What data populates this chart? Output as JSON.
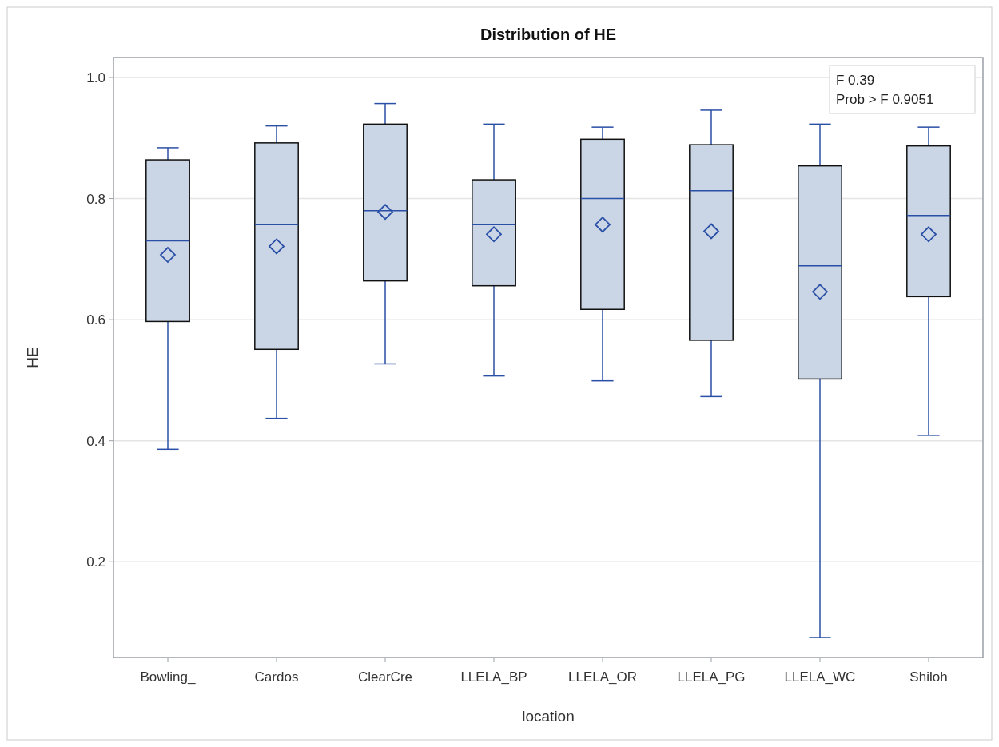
{
  "chart_data": {
    "type": "box",
    "title": "Distribution of HE",
    "xlabel": "location",
    "ylabel": "HE",
    "categories": [
      "Bowling_",
      "Cardos",
      "ClearCre",
      "LLELA_BP",
      "LLELA_OR",
      "LLELA_PG",
      "LLELA_WC",
      "Shiloh"
    ],
    "color": "#cad5e5",
    "marker": "diamond",
    "grid": "y",
    "ylim": [
      0.042,
      1.033
    ],
    "yticks": [
      {
        "value": 0.2,
        "label": "0.2"
      },
      {
        "value": 0.4,
        "label": "0.4"
      },
      {
        "value": 0.6,
        "label": "0.6"
      },
      {
        "value": 0.8,
        "label": "0.8"
      },
      {
        "value": 1.0,
        "label": "1.0"
      }
    ],
    "boxes": [
      {
        "low": 0.386,
        "q1": 0.597,
        "median": 0.73,
        "q3": 0.864,
        "high": 0.884,
        "mean": 0.707
      },
      {
        "low": 0.437,
        "q1": 0.551,
        "median": 0.757,
        "q3": 0.892,
        "high": 0.92,
        "mean": 0.721
      },
      {
        "low": 0.527,
        "q1": 0.664,
        "median": 0.78,
        "q3": 0.923,
        "high": 0.957,
        "mean": 0.778
      },
      {
        "low": 0.507,
        "q1": 0.656,
        "median": 0.757,
        "q3": 0.831,
        "high": 0.923,
        "mean": 0.741
      },
      {
        "low": 0.499,
        "q1": 0.617,
        "median": 0.8,
        "q3": 0.898,
        "high": 0.918,
        "mean": 0.757
      },
      {
        "low": 0.473,
        "q1": 0.566,
        "median": 0.813,
        "q3": 0.889,
        "high": 0.946,
        "mean": 0.746
      },
      {
        "low": 0.075,
        "q1": 0.502,
        "median": 0.689,
        "q3": 0.854,
        "high": 0.923,
        "mean": 0.646
      },
      {
        "low": 0.409,
        "q1": 0.638,
        "median": 0.772,
        "q3": 0.887,
        "high": 0.918,
        "mean": 0.741
      }
    ],
    "annotations": [
      "F 0.39",
      "Prob > F 0.9051"
    ]
  }
}
